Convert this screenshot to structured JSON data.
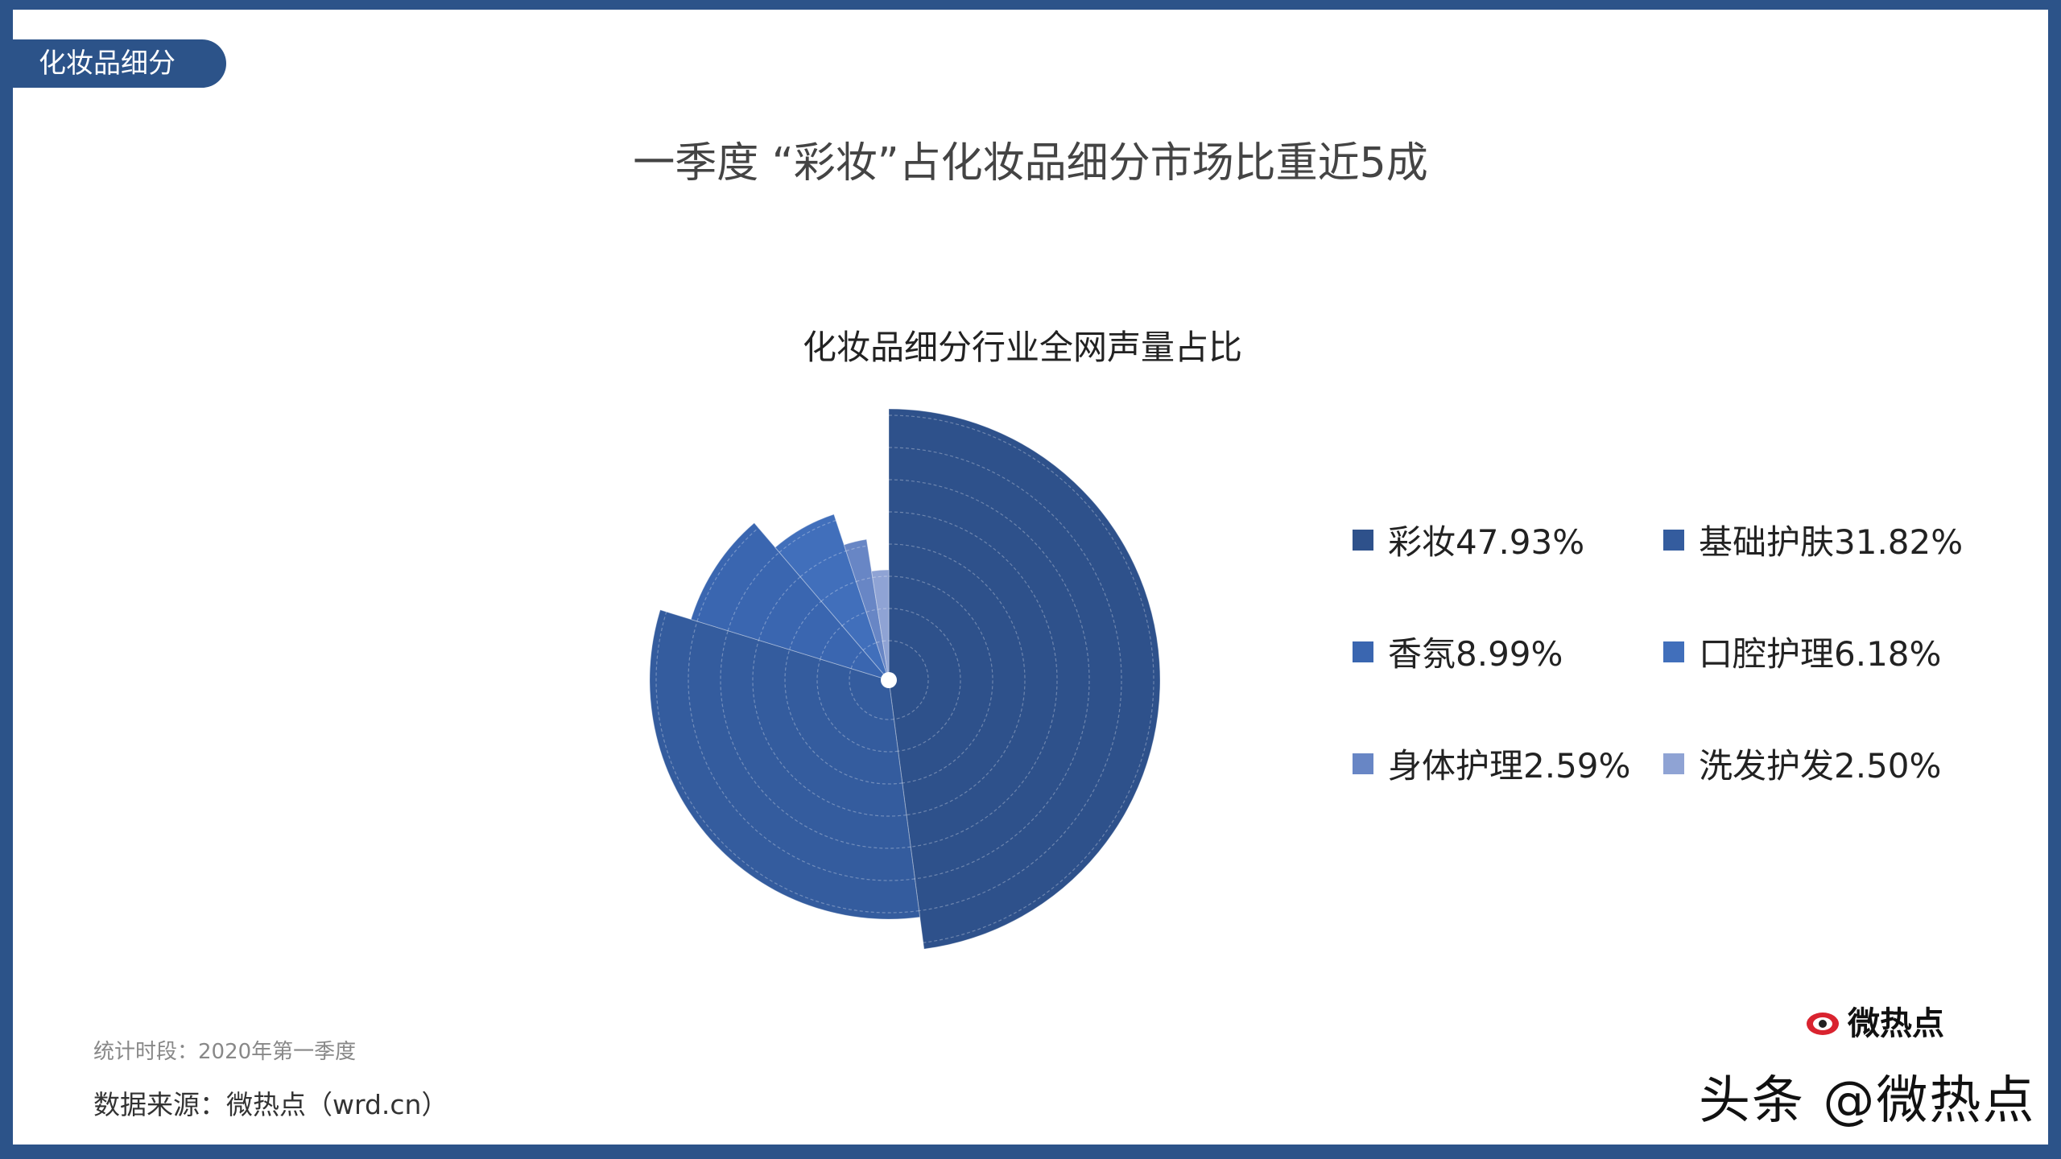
{
  "tag": "化妆品细分",
  "title": "一季度 “彩妆”占化妆品细分市场比重近5成",
  "footer": {
    "period": "统计时段：2020年第一季度",
    "source": "数据来源：微热点（wrd.cn）"
  },
  "watermark": {
    "logo_text": "微热点",
    "text": "头条 @微热点"
  },
  "chart_data": {
    "type": "pie",
    "variant": "nightingale-rose",
    "title": "化妆品细分行业全网声量占比",
    "legend_position": "right",
    "categories": [
      "彩妆",
      "基础护肤",
      "香氛",
      "口腔护理",
      "身体护理",
      "洗发护发"
    ],
    "values": [
      47.93,
      31.82,
      8.99,
      6.18,
      2.59,
      2.5
    ],
    "unit": "%",
    "legend_labels": [
      "彩妆47.93%",
      "基础护肤31.82%",
      "香氛8.99%",
      "口腔护理6.18%",
      "身体护理2.59%",
      "洗发护发2.50%"
    ],
    "colors": [
      "#2e518b",
      "#345c9e",
      "#3a66b0",
      "#416fbb",
      "#6886c5",
      "#8fa3d4"
    ]
  }
}
